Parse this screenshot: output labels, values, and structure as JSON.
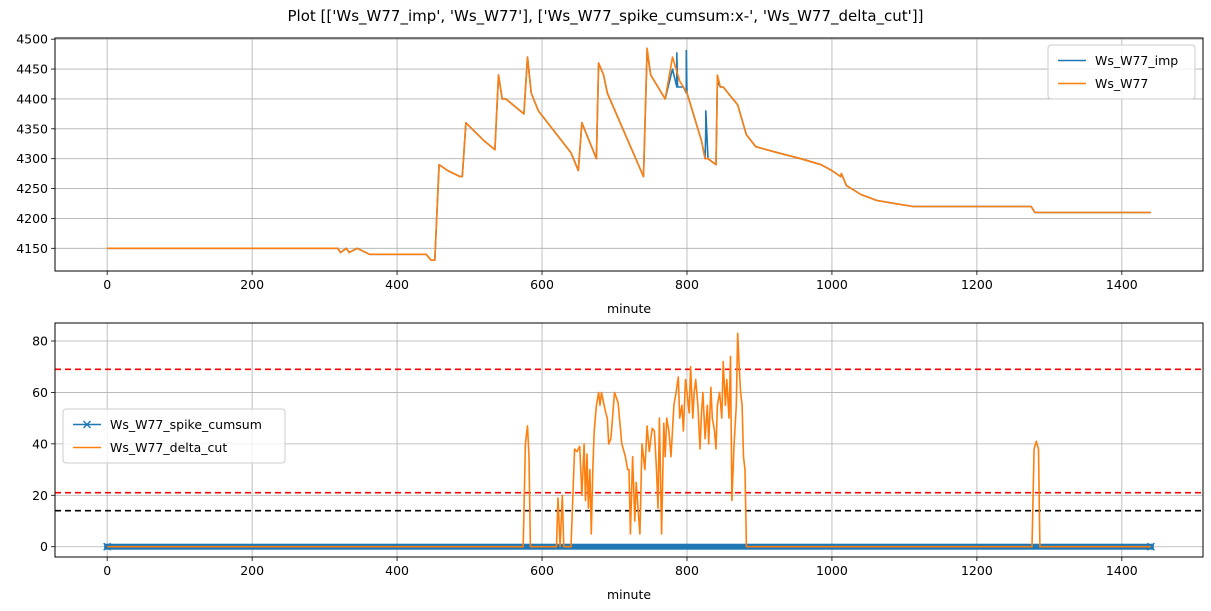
{
  "figure": {
    "suptitle": "Plot [['Ws_W77_imp', 'Ws_W77'], ['Ws_W77_spike_cumsum:x-', 'Ws_W77_delta_cut']]"
  },
  "chart_data": [
    {
      "type": "line",
      "xlabel": "minute",
      "ylabel": "",
      "xlim": [
        -72,
        1512
      ],
      "ylim": [
        4112,
        4502
      ],
      "xticks": [
        0,
        200,
        400,
        600,
        800,
        1000,
        1200,
        1400
      ],
      "yticks": [
        4150,
        4200,
        4250,
        4300,
        4350,
        4400,
        4450,
        4500
      ],
      "grid": true,
      "legend": "top-right",
      "series": [
        {
          "name": "Ws_W77_imp",
          "color": "#1f77b4",
          "x": [
            0,
            318,
            322,
            330,
            334,
            345,
            362,
            440,
            447,
            452,
            458,
            470,
            487,
            490,
            495,
            520,
            535,
            540,
            545,
            550,
            575,
            580,
            585,
            595,
            640,
            650,
            655,
            675,
            678,
            685,
            690,
            740,
            745,
            750,
            770,
            780,
            786,
            786,
            787,
            795,
            799,
            799,
            800,
            820,
            825,
            826,
            826,
            829,
            840,
            842,
            846,
            850,
            870,
            882,
            895,
            925,
            957,
            985,
            1000,
            1012,
            1013,
            1020,
            1040,
            1062,
            1112,
            1200,
            1275,
            1280,
            1290,
            1440
          ],
          "y": [
            4150,
            4150,
            4143,
            4150,
            4143,
            4150,
            4140,
            4140,
            4130,
            4130,
            4290,
            4280,
            4270,
            4270,
            4360,
            4330,
            4315,
            4440,
            4400,
            4400,
            4375,
            4470,
            4410,
            4380,
            4310,
            4280,
            4360,
            4300,
            4460,
            4440,
            4410,
            4270,
            4480,
            4440,
            4400,
            4450,
            4420,
            4477,
            4420,
            4420,
            4410,
            4481,
            4410,
            4330,
            4300,
            4350,
            4380,
            4300,
            4290,
            4430,
            4420,
            4420,
            4390,
            4340,
            4320,
            4310,
            4300,
            4290,
            4280,
            4270,
            4275,
            4255,
            4240,
            4230,
            4220,
            4220,
            4220,
            4210,
            4210,
            4210
          ]
        },
        {
          "name": "Ws_W77",
          "color": "#ff7f0e",
          "x": [
            0,
            318,
            322,
            330,
            334,
            345,
            362,
            440,
            447,
            452,
            458,
            470,
            487,
            490,
            495,
            520,
            535,
            540,
            545,
            550,
            575,
            580,
            585,
            595,
            640,
            650,
            655,
            675,
            678,
            685,
            690,
            740,
            745,
            750,
            770,
            780,
            790,
            800,
            820,
            825,
            829,
            840,
            842,
            846,
            850,
            870,
            882,
            895,
            925,
            957,
            985,
            1000,
            1012,
            1013,
            1020,
            1040,
            1062,
            1112,
            1200,
            1275,
            1280,
            1290,
            1440
          ],
          "y": [
            4150,
            4150,
            4143,
            4150,
            4143,
            4150,
            4140,
            4140,
            4130,
            4130,
            4290,
            4280,
            4270,
            4270,
            4360,
            4330,
            4315,
            4440,
            4400,
            4400,
            4375,
            4470,
            4410,
            4380,
            4310,
            4280,
            4360,
            4300,
            4460,
            4440,
            4410,
            4270,
            4485,
            4440,
            4400,
            4470,
            4430,
            4410,
            4330,
            4300,
            4300,
            4290,
            4440,
            4420,
            4420,
            4390,
            4340,
            4320,
            4310,
            4300,
            4290,
            4280,
            4270,
            4275,
            4255,
            4240,
            4230,
            4220,
            4220,
            4220,
            4210,
            4210,
            4210
          ]
        }
      ]
    },
    {
      "type": "line",
      "xlabel": "minute",
      "ylabel": "",
      "xlim": [
        -72,
        1512
      ],
      "ylim": [
        -4,
        87
      ],
      "xticks": [
        0,
        200,
        400,
        600,
        800,
        1000,
        1200,
        1400
      ],
      "yticks": [
        0,
        20,
        40,
        60,
        80
      ],
      "grid": true,
      "legend": "center-left",
      "hlines": [
        {
          "y": 69,
          "color": "#ff0000",
          "style": "dashed"
        },
        {
          "y": 21,
          "color": "#ff0000",
          "style": "dashed"
        },
        {
          "y": 14,
          "color": "#000000",
          "style": "dashed"
        }
      ],
      "series": [
        {
          "name": "Ws_W77_spike_cumsum",
          "color": "#1f77b4",
          "marker": "x",
          "x_start": 0,
          "x_end": 1440,
          "value": 0
        },
        {
          "name": "Ws_W77_delta_cut",
          "color": "#ff7f0e",
          "x": [
            0,
            574,
            577,
            580,
            582,
            584,
            586,
            620,
            622,
            625,
            628,
            630,
            640,
            645,
            648,
            652,
            655,
            658,
            660,
            662,
            664,
            666,
            668,
            670,
            672,
            675,
            678,
            680,
            682,
            685,
            688,
            690,
            692,
            695,
            700,
            705,
            710,
            715,
            718,
            720,
            722,
            725,
            728,
            730,
            735,
            738,
            742,
            745,
            748,
            752,
            755,
            758,
            760,
            762,
            765,
            768,
            770,
            772,
            775,
            778,
            782,
            785,
            788,
            790,
            793,
            795,
            798,
            800,
            803,
            805,
            808,
            810,
            812,
            815,
            818,
            820,
            822,
            825,
            828,
            830,
            833,
            835,
            838,
            840,
            842,
            845,
            848,
            850,
            853,
            855,
            858,
            860,
            862,
            865,
            868,
            870,
            872,
            874,
            876,
            878,
            880,
            882,
            1276,
            1279,
            1282,
            1285,
            1287,
            1440
          ],
          "y": [
            0,
            0,
            40,
            47,
            35,
            0,
            0,
            0,
            19,
            0,
            20,
            0,
            0,
            38,
            37,
            39,
            20,
            40,
            18,
            36,
            15,
            30,
            5,
            30,
            45,
            55,
            60,
            55,
            60,
            56,
            52,
            50,
            40,
            42,
            60,
            56,
            40,
            35,
            30,
            30,
            5,
            35,
            10,
            25,
            5,
            40,
            30,
            47,
            37,
            46,
            45,
            30,
            15,
            50,
            5,
            48,
            35,
            50,
            45,
            35,
            55,
            60,
            66,
            50,
            55,
            45,
            65,
            60,
            52,
            70,
            50,
            60,
            65,
            55,
            38,
            52,
            60,
            42,
            55,
            40,
            62,
            50,
            45,
            38,
            55,
            60,
            50,
            72,
            55,
            65,
            50,
            74,
            18,
            40,
            55,
            83,
            70,
            60,
            55,
            35,
            30,
            0,
            0,
            38,
            41,
            38,
            0,
            0
          ]
        }
      ]
    }
  ]
}
